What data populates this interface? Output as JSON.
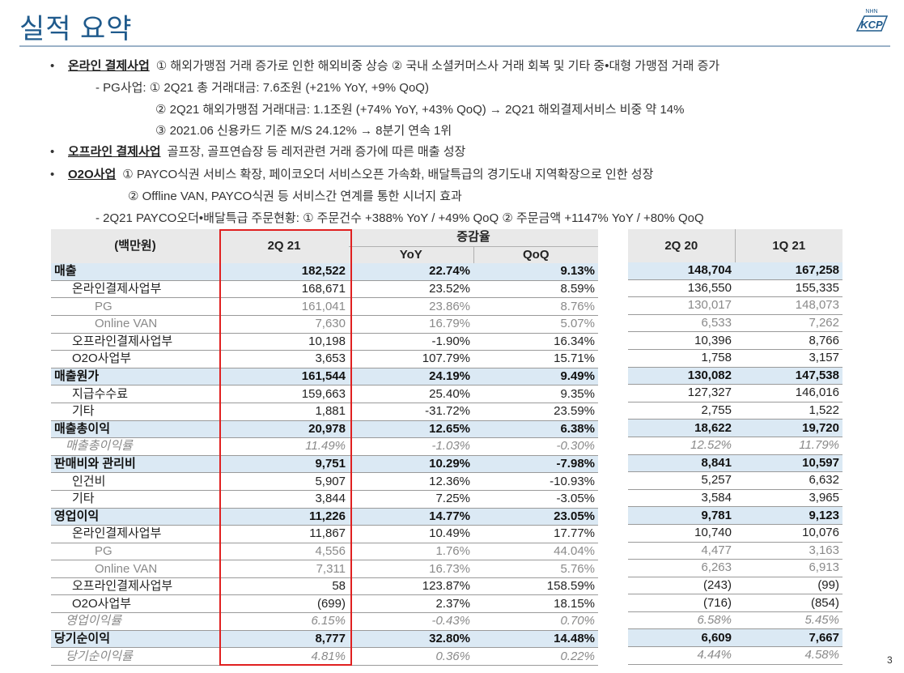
{
  "title": "실적 요약",
  "logo": {
    "text": "KCP",
    "small_text": "NHN",
    "icon": "kcp-logo"
  },
  "bullets": [
    {
      "head": "온라인 결제사업",
      "text": "① 해외가맹점 거래 증가로 인한 해외비중 상승   ② 국내 소셜커머스사 거래 회복 및 기타 중•대형 가맹점 거래 증가"
    },
    {
      "sub": "- PG사업: ① 2Q21 총 거래대금: 7.6조원 (+21% YoY, +9% QoQ)"
    },
    {
      "sub": "② 2Q21 해외가맹점 거래대금: 1.1조원 (+74% YoY, +43% QoQ) → 2Q21 해외결제서비스 비중 약 14%"
    },
    {
      "sub": "③ 2021.06 신용카드 기준 M/S 24.12% → 8분기 연속 1위"
    },
    {
      "head": "오프라인 결제사업",
      "text": "골프장, 골프연습장 등 레저관련 거래 증가에 따른 매출 성장"
    },
    {
      "head": "O2O사업",
      "text": "① PAYCO식권 서비스 확장, 페이코오더 서비스오픈 가속화, 배달특급의 경기도내 지역확장으로 인한 성장"
    },
    {
      "sub": "② Offline VAN, PAYCO식권 등 서비스간 연계를 통한 시너지 효과"
    },
    {
      "sub": "- 2Q21 PAYCO오더•배달특급 주문현황: ① 주문건수 +388% YoY / +49% QoQ  ② 주문금액 +1147% YoY / +80% QoQ"
    }
  ],
  "table": {
    "unit_header": "(백만원)",
    "current_header": "2Q 21",
    "change_header": "증감율",
    "yoy_header": "YoY",
    "qoq_header": "QoQ",
    "prev_headers": [
      "2Q 20",
      "1Q 21"
    ],
    "rows": [
      {
        "label": "매출",
        "style": "hl",
        "indent": 0,
        "cur": "182,522",
        "yoy": "22.74%",
        "qoq": "9.13%",
        "q220": "148,704",
        "q121": "167,258"
      },
      {
        "label": "온라인결제사업부",
        "style": "nm",
        "indent": 1,
        "cur": "168,671",
        "yoy": "23.52%",
        "qoq": "8.59%",
        "q220": "136,550",
        "q121": "155,335"
      },
      {
        "label": "PG",
        "style": "gr",
        "indent": 2,
        "cur": "161,041",
        "yoy": "23.86%",
        "qoq": "8.76%",
        "q220": "130,017",
        "q121": "148,073"
      },
      {
        "label": "Online VAN",
        "style": "gr",
        "indent": 2,
        "cur": "7,630",
        "yoy": "16.79%",
        "qoq": "5.07%",
        "q220": "6,533",
        "q121": "7,262"
      },
      {
        "label": "오프라인결제사업부",
        "style": "nm",
        "indent": 1,
        "cur": "10,198",
        "yoy": "-1.90%",
        "qoq": "16.34%",
        "q220": "10,396",
        "q121": "8,766"
      },
      {
        "label": "O2O사업부",
        "style": "nm",
        "indent": 1,
        "cur": "3,653",
        "yoy": "107.79%",
        "qoq": "15.71%",
        "q220": "1,758",
        "q121": "3,157"
      },
      {
        "label": "매출원가",
        "style": "hl",
        "indent": 0,
        "cur": "161,544",
        "yoy": "24.19%",
        "qoq": "9.49%",
        "q220": "130,082",
        "q121": "147,538"
      },
      {
        "label": "지급수수료",
        "style": "nm",
        "indent": 1,
        "cur": "159,663",
        "yoy": "25.40%",
        "qoq": "9.35%",
        "q220": "127,327",
        "q121": "146,016"
      },
      {
        "label": "기타",
        "style": "nm",
        "indent": 1,
        "cur": "1,881",
        "yoy": "-31.72%",
        "qoq": "23.59%",
        "q220": "2,755",
        "q121": "1,522"
      },
      {
        "label": "매출총이익",
        "style": "hl",
        "indent": 0,
        "cur": "20,978",
        "yoy": "12.65%",
        "qoq": "6.38%",
        "q220": "18,622",
        "q121": "19,720"
      },
      {
        "label": "매출총이익률",
        "style": "it",
        "indent": 3,
        "cur": "11.49%",
        "yoy": "-1.03%",
        "qoq": "-0.30%",
        "q220": "12.52%",
        "q121": "11.79%"
      },
      {
        "label": "판매비와 관리비",
        "style": "hl",
        "indent": 0,
        "cur": "9,751",
        "yoy": "10.29%",
        "qoq": "-7.98%",
        "q220": "8,841",
        "q121": "10,597"
      },
      {
        "label": "인건비",
        "style": "nm",
        "indent": 1,
        "cur": "5,907",
        "yoy": "12.36%",
        "qoq": "-10.93%",
        "q220": "5,257",
        "q121": "6,632"
      },
      {
        "label": "기타",
        "style": "nm",
        "indent": 1,
        "cur": "3,844",
        "yoy": "7.25%",
        "qoq": "-3.05%",
        "q220": "3,584",
        "q121": "3,965"
      },
      {
        "label": "영업이익",
        "style": "hl",
        "indent": 0,
        "cur": "11,226",
        "yoy": "14.77%",
        "qoq": "23.05%",
        "q220": "9,781",
        "q121": "9,123"
      },
      {
        "label": "온라인결제사업부",
        "style": "nm",
        "indent": 1,
        "cur": "11,867",
        "yoy": "10.49%",
        "qoq": "17.77%",
        "q220": "10,740",
        "q121": "10,076"
      },
      {
        "label": "PG",
        "style": "gr",
        "indent": 2,
        "cur": "4,556",
        "yoy": "1.76%",
        "qoq": "44.04%",
        "q220": "4,477",
        "q121": "3,163"
      },
      {
        "label": "Online VAN",
        "style": "gr",
        "indent": 2,
        "cur": "7,311",
        "yoy": "16.73%",
        "qoq": "5.76%",
        "q220": "6,263",
        "q121": "6,913"
      },
      {
        "label": "오프라인결제사업부",
        "style": "nm",
        "indent": 1,
        "cur": "58",
        "yoy": "123.87%",
        "qoq": "158.59%",
        "q220": "(243)",
        "q121": "(99)"
      },
      {
        "label": "O2O사업부",
        "style": "nm",
        "indent": 1,
        "cur": "(699)",
        "yoy": "2.37%",
        "qoq": "18.15%",
        "q220": "(716)",
        "q121": "(854)"
      },
      {
        "label": "영업이익률",
        "style": "it",
        "indent": 3,
        "cur": "6.15%",
        "yoy": "-0.43%",
        "qoq": "0.70%",
        "q220": "6.58%",
        "q121": "5.45%"
      },
      {
        "label": "당기순이익",
        "style": "hl",
        "indent": 0,
        "cur": "8,777",
        "yoy": "32.80%",
        "qoq": "14.48%",
        "q220": "6,609",
        "q121": "7,667"
      },
      {
        "label": "당기순이익률",
        "style": "it",
        "indent": 3,
        "cur": "4.81%",
        "yoy": "0.36%",
        "qoq": "0.22%",
        "q220": "4.44%",
        "q121": "4.58%"
      }
    ]
  },
  "page_number": "3",
  "colors": {
    "title": "#1f5a8c",
    "highlight_row": "#dbe9f4",
    "header_bg": "#e9e9e9",
    "red_box": "#e02020"
  }
}
